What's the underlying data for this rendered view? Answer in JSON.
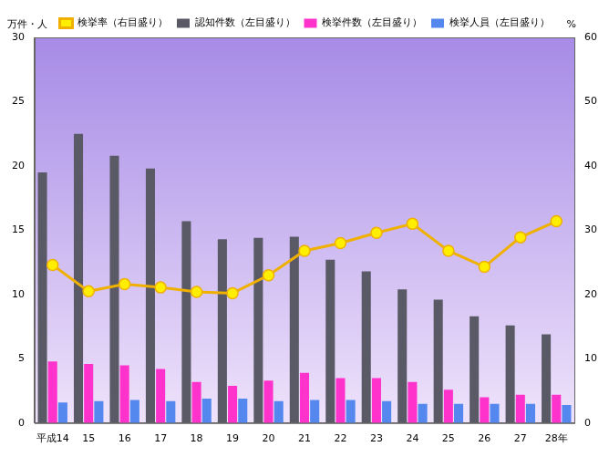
{
  "chart_data": {
    "type": "bar",
    "categories": [
      "平成14",
      "15",
      "16",
      "17",
      "18",
      "19",
      "20",
      "21",
      "22",
      "23",
      "24",
      "25",
      "26",
      "27",
      "28年"
    ],
    "y_label": "万件・人",
    "y2_label": "%",
    "series": [
      {
        "name": "認知件数（左目盛り）",
        "color": "#5a5a66",
        "type": "bar",
        "values": [
          19.5,
          22.5,
          20.8,
          19.8,
          15.7,
          14.3,
          14.4,
          14.5,
          12.7,
          11.8,
          10.4,
          9.6,
          8.3,
          7.6,
          6.9
        ]
      },
      {
        "name": "検挙件数（左目盛り）",
        "color": "#ff33cc",
        "type": "bar",
        "values": [
          4.8,
          4.6,
          4.5,
          4.2,
          3.2,
          2.9,
          3.3,
          3.9,
          3.5,
          3.5,
          3.2,
          2.6,
          2.0,
          2.2,
          2.2
        ]
      },
      {
        "name": "検挙人員（左目盛り）",
        "color": "#5588ee",
        "type": "bar",
        "values": [
          1.6,
          1.7,
          1.8,
          1.7,
          1.9,
          1.9,
          1.7,
          1.8,
          1.8,
          1.7,
          1.5,
          1.5,
          1.5,
          1.5,
          1.4
        ]
      },
      {
        "name": "検挙率（右目盛り）",
        "color": "#f0b000",
        "type": "line",
        "axis": "y2",
        "marker": "circle",
        "values": [
          24.6,
          20.5,
          21.6,
          21.1,
          20.4,
          20.2,
          23.0,
          26.8,
          28.0,
          29.6,
          31.0,
          26.8,
          24.3,
          28.9,
          31.4
        ]
      }
    ],
    "ylim": [
      0,
      30
    ],
    "yticks": [
      0,
      5,
      10,
      15,
      20,
      25,
      30
    ],
    "y2lim": [
      0,
      60
    ],
    "y2ticks": [
      0,
      10,
      20,
      30,
      40,
      50,
      60
    ],
    "grid": false,
    "legend": "top"
  }
}
